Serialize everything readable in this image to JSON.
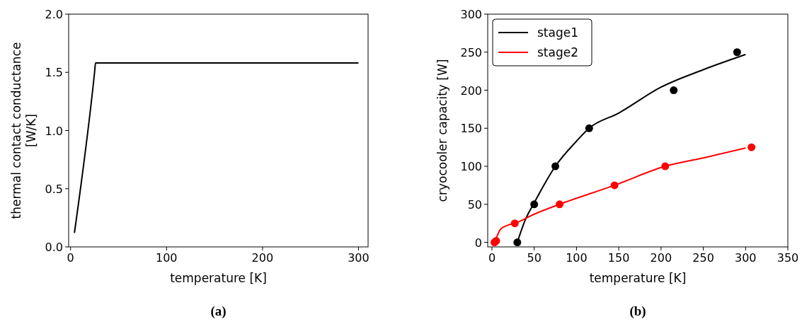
{
  "chart_data": [
    {
      "type": "line",
      "xlabel": "temperature [K]",
      "ylabel": "thermal contact conductance\n[W/K]",
      "annotations": [
        "(a)"
      ],
      "xlim": [
        -2,
        310
      ],
      "ylim": [
        0,
        2
      ],
      "xticks": [
        0,
        100,
        200,
        300
      ],
      "yticks": [
        {
          "value": 0,
          "label": "0.0"
        },
        {
          "value": 0.5,
          "label": "0.5"
        },
        {
          "value": 1,
          "label": "1.0"
        },
        {
          "value": 1.5,
          "label": "1.5"
        },
        {
          "value": 2,
          "label": "2.0"
        }
      ],
      "grid": false,
      "legend": false,
      "series": [
        {
          "color": "#000000",
          "x": [
            4,
            25,
            26,
            300
          ],
          "values": [
            0.12,
            1.5,
            1.58,
            1.58
          ]
        }
      ]
    },
    {
      "type": "line",
      "xlabel": "temperature [K]",
      "ylabel": "cryocooler capacity [W]",
      "annotations": [
        "(b)"
      ],
      "xlim": [
        -5,
        350
      ],
      "ylim": [
        -6,
        300
      ],
      "xticks": [
        0,
        50,
        100,
        150,
        200,
        250,
        300,
        350
      ],
      "yticks": [
        0,
        50,
        100,
        150,
        200,
        250,
        300
      ],
      "grid": false,
      "legend": "top left",
      "series": [
        {
          "name": "stage1",
          "color": "#000000",
          "x": [
            30,
            40,
            50,
            75,
            100,
            115,
            150,
            200,
            250,
            300
          ],
          "values": [
            0,
            31,
            52,
            100,
            133,
            150,
            170,
            204,
            227,
            247
          ]
        },
        {
          "name": "stage2",
          "color": "#ff0000",
          "x": [
            0,
            2,
            5,
            10,
            20,
            27,
            50,
            80,
            145,
            205,
            250,
            300
          ],
          "values": [
            0,
            2,
            6,
            17,
            23,
            25,
            37,
            50,
            75,
            100,
            111,
            124
          ]
        },
        {
          "type": "scatter",
          "marker": "circle",
          "color": "#000000",
          "x": [
            30,
            50,
            75,
            115,
            215,
            290
          ],
          "values": [
            0,
            50,
            100,
            150,
            200,
            250
          ]
        },
        {
          "type": "scatter",
          "marker": "circle",
          "color": "#ff0000",
          "x": [
            3,
            5,
            27,
            80,
            145,
            205,
            307
          ],
          "values": [
            0,
            2,
            25,
            50,
            75,
            100,
            125
          ]
        }
      ]
    }
  ]
}
